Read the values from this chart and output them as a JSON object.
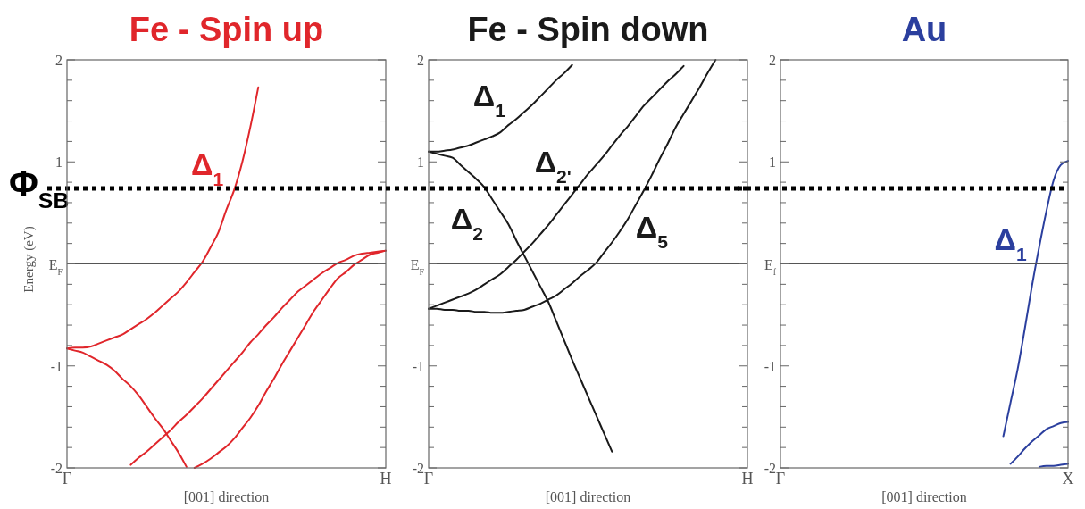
{
  "chart_data": [
    {
      "type": "line",
      "title": "Fe - Spin up",
      "xlabel": "[001] direction",
      "ylabel": "Energy (eV)",
      "categories": [
        "Γ",
        null,
        null,
        null,
        null,
        null,
        null,
        null,
        null,
        null,
        null,
        null,
        null,
        null,
        null,
        null,
        null,
        null,
        null,
        null,
        null,
        null,
        null,
        null,
        null,
        null,
        null,
        null,
        null,
        null,
        null,
        null,
        null,
        null,
        null,
        null,
        null,
        null,
        null,
        null,
        "H"
      ],
      "ylim": [
        -2,
        2
      ],
      "yticks": [
        -2,
        {
          "value": -1.8,
          "label": null
        },
        {
          "value": -1.6,
          "label": null
        },
        {
          "value": -1.4,
          "label": null
        },
        {
          "value": -1.2,
          "label": null
        },
        -1,
        {
          "value": -0.8,
          "label": null
        },
        {
          "value": -0.6,
          "label": null
        },
        {
          "value": -0.4,
          "label": null
        },
        {
          "value": -0.2,
          "label": null
        },
        {
          "value": 0,
          "label": "E$_{F}$"
        },
        {
          "value": 0.2,
          "label": null
        },
        {
          "value": 0.4,
          "label": null
        },
        {
          "value": 0.6,
          "label": null
        },
        {
          "value": 0.8,
          "label": null
        },
        1,
        {
          "value": 1.2,
          "label": null
        },
        {
          "value": 1.4,
          "label": null
        },
        {
          "value": 1.6,
          "label": null
        },
        {
          "value": 1.8,
          "label": null
        },
        2
      ],
      "series": [
        {
          "color": "#e0262b",
          "values": [
            -0.83,
            -0.82,
            -0.82,
            -0.81,
            -0.78,
            -0.75,
            -0.72,
            -0.69,
            -0.64,
            -0.59,
            -0.54,
            -0.48,
            -0.41,
            -0.34,
            -0.27,
            -0.18,
            -0.08,
            0.02,
            0.16,
            0.31,
            0.53,
            0.73,
            1.0,
            1.34,
            1.73,
            null,
            null,
            null,
            null,
            null,
            null,
            null,
            null,
            null,
            null,
            null,
            null,
            null,
            null,
            null,
            null
          ]
        },
        {
          "color": "#e0262b",
          "values": [
            -0.83,
            -0.85,
            -0.87,
            -0.91,
            -0.95,
            -0.99,
            -1.05,
            -1.13,
            -1.2,
            -1.29,
            -1.4,
            -1.51,
            -1.61,
            -1.73,
            -1.85,
            -1.99,
            null,
            null,
            null,
            null,
            null,
            null,
            null,
            null,
            null,
            null,
            null,
            null,
            null,
            null,
            null,
            null,
            null,
            null,
            null,
            null,
            null,
            null,
            null,
            null,
            null
          ]
        },
        {
          "color": "#e0262b",
          "values": [
            null,
            null,
            null,
            null,
            null,
            null,
            null,
            null,
            -1.97,
            -1.9,
            -1.84,
            -1.77,
            -1.7,
            -1.63,
            -1.55,
            -1.48,
            -1.4,
            -1.32,
            -1.23,
            -1.14,
            -1.05,
            -0.96,
            -0.87,
            -0.77,
            -0.69,
            -0.6,
            -0.52,
            -0.43,
            -0.35,
            -0.27,
            -0.21,
            -0.15,
            -0.09,
            -0.04,
            0.01,
            0.04,
            0.08,
            0.1,
            0.11,
            0.12,
            0.13
          ]
        },
        {
          "color": "#e0262b",
          "values": [
            null,
            null,
            null,
            null,
            null,
            null,
            null,
            null,
            null,
            null,
            null,
            null,
            null,
            null,
            null,
            null,
            -2,
            -1.96,
            -1.91,
            -1.85,
            -1.79,
            -1.71,
            -1.61,
            -1.51,
            -1.39,
            -1.25,
            -1.12,
            -0.98,
            -0.85,
            -0.72,
            -0.59,
            -0.46,
            -0.35,
            -0.24,
            -0.14,
            -0.08,
            -0.01,
            0.04,
            0.09,
            0.11,
            0.13
          ]
        }
      ],
      "ref_lines": [
        {
          "axis": "y",
          "value": 0,
          "color": "#555555",
          "line_style": "solid"
        },
        {
          "axis": "y",
          "value": 0.74,
          "label": "Φ$_{SB}$",
          "color": "#000000",
          "line_style": "dotted"
        }
      ],
      "annotations": [
        "Δ$_{1}$"
      ]
    },
    {
      "type": "line",
      "title": "Fe - Spin down",
      "xlabel": "[001] direction",
      "categories": [
        "Γ",
        null,
        null,
        null,
        null,
        null,
        null,
        null,
        null,
        null,
        null,
        null,
        null,
        null,
        null,
        null,
        null,
        null,
        null,
        null,
        null,
        null,
        null,
        null,
        null,
        null,
        null,
        null,
        null,
        null,
        null,
        null,
        null,
        null,
        null,
        null,
        null,
        null,
        null,
        null,
        "H"
      ],
      "ylim": [
        -2,
        2
      ],
      "yticks": [
        -2,
        {
          "value": -1.8,
          "label": null
        },
        {
          "value": -1.6,
          "label": null
        },
        {
          "value": -1.4,
          "label": null
        },
        {
          "value": -1.2,
          "label": null
        },
        -1,
        {
          "value": -0.8,
          "label": null
        },
        {
          "value": -0.6,
          "label": null
        },
        {
          "value": -0.4,
          "label": null
        },
        {
          "value": -0.2,
          "label": null
        },
        {
          "value": 0,
          "label": "E$_{F}$"
        },
        {
          "value": 0.2,
          "label": null
        },
        {
          "value": 0.4,
          "label": null
        },
        {
          "value": 0.6,
          "label": null
        },
        {
          "value": 0.8,
          "label": null
        },
        1,
        {
          "value": 1.2,
          "label": null
        },
        {
          "value": 1.4,
          "label": null
        },
        {
          "value": 1.6,
          "label": null
        },
        {
          "value": 1.8,
          "label": null
        },
        2
      ],
      "series": [
        {
          "color": "#1a1a1a",
          "values": [
            1.1,
            1.1,
            1.11,
            1.12,
            1.14,
            1.16,
            1.19,
            1.22,
            1.25,
            1.29,
            1.36,
            1.42,
            1.49,
            1.56,
            1.64,
            1.72,
            1.8,
            1.87,
            1.95,
            null,
            null,
            null,
            null,
            null,
            null,
            null,
            null,
            null,
            null,
            null,
            null,
            null,
            null,
            null,
            null,
            null,
            null,
            null,
            null,
            null,
            null
          ]
        },
        {
          "color": "#1a1a1a",
          "values": [
            1.1,
            1.08,
            1.06,
            1.04,
            0.97,
            0.9,
            0.83,
            0.75,
            0.63,
            0.51,
            0.39,
            0.23,
            0.08,
            -0.07,
            -0.22,
            -0.37,
            -0.56,
            -0.75,
            -0.94,
            -1.12,
            -1.3,
            -1.48,
            -1.66,
            -1.84,
            null,
            null,
            null,
            null,
            null,
            null,
            null,
            null,
            null,
            null,
            null,
            null,
            null,
            null,
            null,
            null,
            null
          ]
        },
        {
          "color": "#1a1a1a",
          "values": [
            -0.44,
            -0.41,
            -0.38,
            -0.35,
            -0.32,
            -0.29,
            -0.25,
            -0.2,
            -0.15,
            -0.1,
            -0.03,
            0.04,
            0.12,
            0.2,
            0.29,
            0.38,
            0.48,
            0.58,
            0.68,
            0.78,
            0.88,
            0.97,
            1.06,
            1.16,
            1.26,
            1.35,
            1.45,
            1.55,
            1.63,
            1.71,
            1.79,
            1.86,
            1.94,
            null,
            null,
            null,
            null,
            null,
            null,
            null,
            null
          ]
        },
        {
          "color": "#1a1a1a",
          "values": [
            -0.44,
            -0.44,
            -0.45,
            -0.45,
            -0.46,
            -0.46,
            -0.47,
            -0.47,
            -0.48,
            -0.48,
            -0.47,
            -0.46,
            -0.45,
            -0.42,
            -0.39,
            -0.35,
            -0.31,
            -0.25,
            -0.19,
            -0.12,
            -0.06,
            0.01,
            0.11,
            0.21,
            0.32,
            0.44,
            0.58,
            0.72,
            0.87,
            1.03,
            1.18,
            1.34,
            1.47,
            1.6,
            1.73,
            1.87,
            2,
            null,
            null,
            null,
            null
          ]
        }
      ],
      "ref_lines": [
        {
          "axis": "y",
          "value": 0,
          "color": "#555555",
          "line_style": "solid"
        },
        {
          "axis": "y",
          "value": 0.74,
          "color": "#000000",
          "line_style": "dotted"
        }
      ],
      "annotations": [
        "Δ$_{1}$",
        "Δ$_{2'}$",
        "Δ$_{2}$",
        "Δ$_{5}$"
      ]
    },
    {
      "type": "line",
      "title": "Au",
      "xlabel": "[001] direction",
      "categories": [
        "Γ",
        null,
        null,
        null,
        null,
        null,
        null,
        null,
        null,
        null,
        null,
        null,
        null,
        null,
        null,
        null,
        null,
        null,
        null,
        null,
        null,
        null,
        null,
        null,
        null,
        null,
        null,
        null,
        null,
        null,
        null,
        null,
        null,
        null,
        null,
        null,
        null,
        null,
        null,
        null,
        "X"
      ],
      "ylim": [
        -2,
        2
      ],
      "yticks": [
        -2,
        {
          "value": -1.8,
          "label": null
        },
        {
          "value": -1.6,
          "label": null
        },
        {
          "value": -1.4,
          "label": null
        },
        {
          "value": -1.2,
          "label": null
        },
        -1,
        {
          "value": -0.8,
          "label": null
        },
        {
          "value": -0.6,
          "label": null
        },
        {
          "value": -0.4,
          "label": null
        },
        {
          "value": -0.2,
          "label": null
        },
        {
          "value": 0,
          "label": "E$_{f}$"
        },
        {
          "value": 0.2,
          "label": null
        },
        {
          "value": 0.4,
          "label": null
        },
        {
          "value": 0.6,
          "label": null
        },
        {
          "value": 0.8,
          "label": null
        },
        1,
        {
          "value": 1.2,
          "label": null
        },
        {
          "value": 1.4,
          "label": null
        },
        {
          "value": 1.6,
          "label": null
        },
        {
          "value": 1.8,
          "label": null
        },
        2
      ],
      "series": [
        {
          "color": "#2b3f9e",
          "values": [
            null,
            null,
            null,
            null,
            null,
            null,
            null,
            null,
            null,
            null,
            null,
            null,
            null,
            null,
            null,
            null,
            null,
            null,
            null,
            null,
            null,
            null,
            null,
            null,
            null,
            null,
            null,
            null,
            null,
            null,
            null,
            -1.69,
            -1.36,
            -1.03,
            -0.63,
            -0.21,
            0.17,
            0.52,
            0.82,
            0.97,
            1.01
          ]
        },
        {
          "color": "#2b3f9e",
          "values": [
            null,
            null,
            null,
            null,
            null,
            null,
            null,
            null,
            null,
            null,
            null,
            null,
            null,
            null,
            null,
            null,
            null,
            null,
            null,
            null,
            null,
            null,
            null,
            null,
            null,
            null,
            null,
            null,
            null,
            null,
            null,
            null,
            -1.96,
            -1.89,
            -1.81,
            -1.74,
            -1.68,
            -1.62,
            -1.59,
            -1.56,
            -1.55
          ]
        },
        {
          "color": "#2b3f9e",
          "values": [
            null,
            null,
            null,
            null,
            null,
            null,
            null,
            null,
            null,
            null,
            null,
            null,
            null,
            null,
            null,
            null,
            null,
            null,
            null,
            null,
            null,
            null,
            null,
            null,
            null,
            null,
            null,
            null,
            null,
            null,
            null,
            null,
            null,
            null,
            null,
            null,
            -1.99,
            -1.98,
            -1.98,
            -1.97,
            -1.96
          ]
        }
      ],
      "ref_lines": [
        {
          "axis": "y",
          "value": 0,
          "color": "#555555",
          "line_style": "solid"
        },
        {
          "axis": "y",
          "value": 0.74,
          "color": "#000000",
          "line_style": "dotted"
        }
      ],
      "annotations": [
        "Δ$_{1}$"
      ]
    }
  ]
}
